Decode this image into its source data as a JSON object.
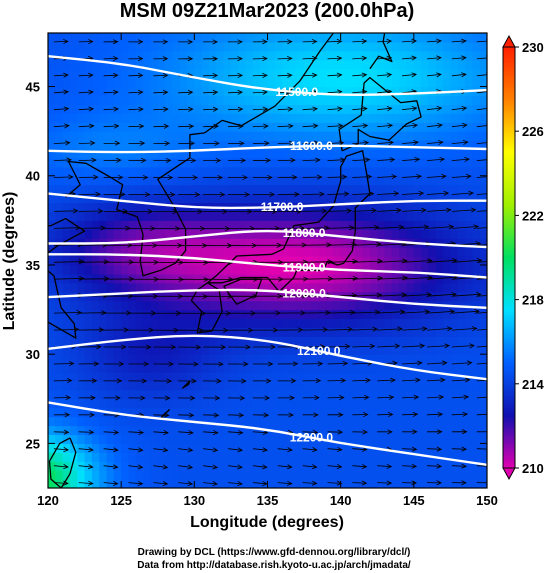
{
  "chart_data": {
    "type": "heatmap",
    "title": "MSM 09Z21Mar2023 (200.0hPa)",
    "xlabel": "Longitude (degrees)",
    "ylabel": "Latitude  (degrees)",
    "xlim": [
      120,
      150
    ],
    "ylim": [
      22.5,
      48
    ],
    "x_ticks": [
      "120",
      "125",
      "130",
      "135",
      "140",
      "145",
      "150"
    ],
    "x_tick_values": [
      120,
      125,
      130,
      135,
      140,
      145,
      150
    ],
    "y_ticks": [
      "25",
      "30",
      "35",
      "40",
      "45"
    ],
    "y_tick_values": [
      25,
      30,
      35,
      40,
      45
    ],
    "colorbar": {
      "min": 210,
      "max": 230,
      "ticks": [
        "210",
        "214",
        "218",
        "222",
        "226",
        "230"
      ],
      "tick_values": [
        210,
        214,
        218,
        222,
        226,
        230
      ],
      "colors": [
        "#e000b0",
        "#1010b0",
        "#0060ff",
        "#00e0ff",
        "#00e060",
        "#a0f000",
        "#ffff00",
        "#ff8000",
        "#ff2000"
      ]
    },
    "contours": [
      {
        "label": "11500.0",
        "value": 11500,
        "points": [
          [
            120,
            46.7
          ],
          [
            125,
            46.3
          ],
          [
            130,
            45.5
          ],
          [
            135,
            44.8
          ],
          [
            140,
            44.5
          ],
          [
            145,
            44.6
          ],
          [
            150,
            44.8
          ]
        ]
      },
      {
        "label": "11600.0",
        "value": 11600,
        "points": [
          [
            120,
            41.4
          ],
          [
            125,
            41.3
          ],
          [
            130,
            41.4
          ],
          [
            135,
            41.6
          ],
          [
            140,
            41.7
          ],
          [
            145,
            41.6
          ],
          [
            150,
            41.5
          ]
        ]
      },
      {
        "label": "11700.0",
        "value": 11700,
        "points": [
          [
            120,
            39.0
          ],
          [
            125,
            38.6
          ],
          [
            130,
            38.2
          ],
          [
            135,
            38.2
          ],
          [
            140,
            38.4
          ],
          [
            145,
            38.6
          ],
          [
            150,
            38.6
          ]
        ]
      },
      {
        "label": "11800.0",
        "value": 11800,
        "points": [
          [
            120,
            36.2
          ],
          [
            125,
            36.2
          ],
          [
            130,
            36.6
          ],
          [
            135,
            37.0
          ],
          [
            140,
            36.6
          ],
          [
            145,
            36.2
          ],
          [
            150,
            36.0
          ]
        ]
      },
      {
        "label": "11900.0",
        "value": 11900,
        "points": [
          [
            120,
            35.6
          ],
          [
            125,
            35.6
          ],
          [
            130,
            35.4
          ],
          [
            135,
            35.0
          ],
          [
            140,
            34.7
          ],
          [
            145,
            34.6
          ],
          [
            150,
            34.3
          ]
        ]
      },
      {
        "label": "12000.0",
        "value": 12000,
        "points": [
          [
            120,
            33.2
          ],
          [
            125,
            33.4
          ],
          [
            130,
            33.6
          ],
          [
            135,
            33.6
          ],
          [
            140,
            33.2
          ],
          [
            145,
            32.8
          ],
          [
            150,
            32.6
          ]
        ]
      },
      {
        "label": "12100.0",
        "value": 12100,
        "points": [
          [
            120,
            30.3
          ],
          [
            125,
            30.8
          ],
          [
            130,
            31.1
          ],
          [
            135,
            30.8
          ],
          [
            140,
            29.9
          ],
          [
            145,
            29.1
          ],
          [
            150,
            28.6
          ]
        ]
      },
      {
        "label": "12200.0",
        "value": 12200,
        "points": [
          [
            120,
            27.3
          ],
          [
            125,
            26.6
          ],
          [
            130,
            26.2
          ],
          [
            135,
            25.8
          ],
          [
            140,
            25.0
          ],
          [
            145,
            24.4
          ],
          [
            150,
            23.8
          ]
        ]
      }
    ]
  },
  "credits": {
    "line1": "Drawing by DCL (https://www.gfd-dennou.org/library/dcl/)",
    "line2": "Data from http://database.rish.kyoto-u.ac.jp/arch/jmadata/"
  }
}
